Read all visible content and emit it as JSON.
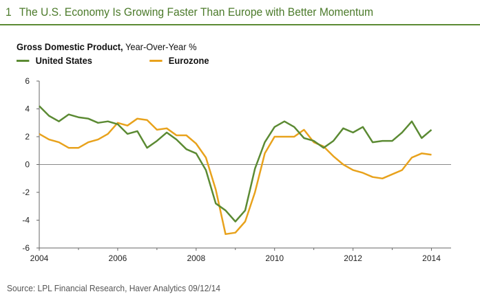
{
  "header": {
    "number": "1",
    "title": "The U.S. Economy Is Growing Faster Than Europe with Better Momentum"
  },
  "subtitle": {
    "bold": "Gross Domestic Product,",
    "normal": " Year-Over-Year %"
  },
  "source": "Source: LPL Financial Research, Haver Analytics   09/12/14",
  "chart_data": {
    "type": "line",
    "title": "Gross Domestic Product, Year-Over-Year %",
    "xlabel": "",
    "ylabel": "",
    "ylim": [
      -6,
      6
    ],
    "xlim": [
      2004,
      2014.5
    ],
    "yticks": [
      6,
      4,
      2,
      0,
      -2,
      -4,
      -6
    ],
    "xticks": [
      2004,
      2006,
      2008,
      2010,
      2012,
      2014
    ],
    "legend": "top-left",
    "x_start": 2004,
    "x_step": 0.25,
    "series": [
      {
        "name": "United States",
        "color": "#5b8a33",
        "values": [
          4.2,
          3.5,
          3.1,
          3.6,
          3.4,
          3.3,
          3.0,
          3.1,
          2.9,
          2.2,
          2.4,
          1.2,
          1.7,
          2.3,
          1.8,
          1.1,
          0.8,
          -0.4,
          -2.8,
          -3.3,
          -4.1,
          -3.3,
          -0.3,
          1.6,
          2.7,
          3.1,
          2.7,
          1.9,
          1.7,
          1.2,
          1.7,
          2.6,
          2.3,
          2.7,
          1.6,
          1.7,
          1.7,
          2.3,
          3.1,
          1.9,
          2.5
        ]
      },
      {
        "name": "Eurozone",
        "color": "#e8a21c",
        "values": [
          2.2,
          1.8,
          1.6,
          1.2,
          1.2,
          1.6,
          1.8,
          2.2,
          3.0,
          2.8,
          3.3,
          3.2,
          2.5,
          2.6,
          2.1,
          2.1,
          1.5,
          0.5,
          -1.8,
          -5.0,
          -4.9,
          -4.1,
          -2.0,
          0.8,
          2.0,
          2.0,
          2.0,
          2.5,
          1.6,
          1.3,
          0.6,
          0.0,
          -0.4,
          -0.6,
          -0.9,
          -1.0,
          -0.7,
          -0.4,
          0.5,
          0.8,
          0.7
        ]
      }
    ]
  }
}
